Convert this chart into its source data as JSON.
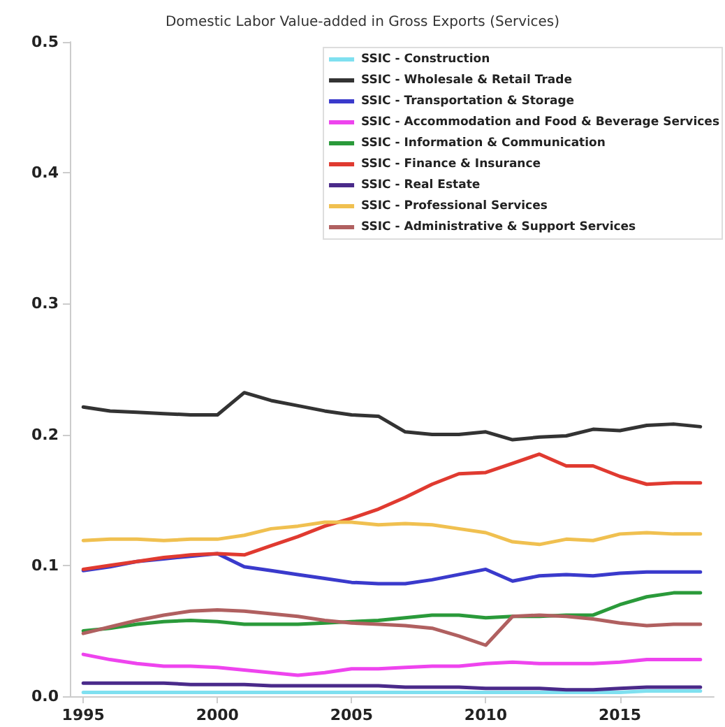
{
  "chart_data": {
    "type": "line",
    "title": "Domestic Labor Value-added in Gross Exports (Services)",
    "x": [
      1995,
      1996,
      1997,
      1998,
      1999,
      2000,
      2001,
      2002,
      2003,
      2004,
      2005,
      2006,
      2007,
      2008,
      2009,
      2010,
      2011,
      2012,
      2013,
      2014,
      2015,
      2016,
      2017,
      2018
    ],
    "xlim": [
      1994.5,
      2018.5
    ],
    "xticks": [
      1995,
      2000,
      2005,
      2010,
      2015
    ],
    "ylim": [
      0,
      0.5
    ],
    "yticks": [
      {
        "value": 0,
        "label": "0.0"
      },
      0.1,
      0.2,
      0.3,
      0.4,
      0.5
    ],
    "grid": false,
    "legend": "top right",
    "marker": "none",
    "line_style": "solid",
    "series": [
      {
        "name": "SSIC - Construction",
        "color": "#7fe0f0",
        "values": [
          0.003,
          0.003,
          0.003,
          0.003,
          0.003,
          0.003,
          0.003,
          0.003,
          0.003,
          0.003,
          0.003,
          0.003,
          0.003,
          0.003,
          0.003,
          0.003,
          0.003,
          0.003,
          0.003,
          0.003,
          0.003,
          0.004,
          0.004,
          0.004
        ]
      },
      {
        "name": "SSIC - Wholesale & Retail Trade",
        "color": "#333333",
        "values": [
          0.221,
          0.218,
          0.217,
          0.216,
          0.215,
          0.215,
          0.232,
          0.226,
          0.222,
          0.218,
          0.215,
          0.214,
          0.202,
          0.2,
          0.2,
          0.202,
          0.196,
          0.198,
          0.199,
          0.204,
          0.203,
          0.207,
          0.208,
          0.206
        ]
      },
      {
        "name": "SSIC - Transportation & Storage",
        "color": "#3a3acc",
        "values": [
          0.096,
          0.099,
          0.103,
          0.105,
          0.107,
          0.109,
          0.099,
          0.096,
          0.093,
          0.09,
          0.087,
          0.086,
          0.086,
          0.089,
          0.093,
          0.097,
          0.088,
          0.092,
          0.093,
          0.092,
          0.094,
          0.095,
          0.095,
          0.095
        ]
      },
      {
        "name": "SSIC - Accommodation and Food & Beverage Services",
        "color": "#ee44ee",
        "values": [
          0.032,
          0.028,
          0.025,
          0.023,
          0.023,
          0.022,
          0.02,
          0.018,
          0.016,
          0.018,
          0.021,
          0.021,
          0.022,
          0.023,
          0.023,
          0.025,
          0.026,
          0.025,
          0.025,
          0.025,
          0.026,
          0.028,
          0.028,
          0.028
        ]
      },
      {
        "name": "SSIC - Information & Communication",
        "color": "#2a9a3a",
        "values": [
          0.05,
          0.052,
          0.055,
          0.057,
          0.058,
          0.057,
          0.055,
          0.055,
          0.055,
          0.056,
          0.057,
          0.058,
          0.06,
          0.062,
          0.062,
          0.06,
          0.061,
          0.061,
          0.062,
          0.062,
          0.07,
          0.076,
          0.079,
          0.079
        ]
      },
      {
        "name": "SSIC - Finance & Insurance",
        "color": "#e03a30",
        "values": [
          0.097,
          0.1,
          0.103,
          0.106,
          0.108,
          0.109,
          0.108,
          0.115,
          0.122,
          0.13,
          0.136,
          0.143,
          0.152,
          0.162,
          0.17,
          0.171,
          0.178,
          0.185,
          0.176,
          0.176,
          0.168,
          0.162,
          0.163,
          0.163
        ]
      },
      {
        "name": "SSIC - Real Estate",
        "color": "#4a2a8a",
        "values": [
          0.01,
          0.01,
          0.01,
          0.01,
          0.009,
          0.009,
          0.009,
          0.008,
          0.008,
          0.008,
          0.008,
          0.008,
          0.007,
          0.007,
          0.007,
          0.006,
          0.006,
          0.006,
          0.005,
          0.005,
          0.006,
          0.007,
          0.007,
          0.007
        ]
      },
      {
        "name": "SSIC - Professional Services",
        "color": "#f0c050",
        "values": [
          0.119,
          0.12,
          0.12,
          0.119,
          0.12,
          0.12,
          0.123,
          0.128,
          0.13,
          0.133,
          0.133,
          0.131,
          0.132,
          0.131,
          0.128,
          0.125,
          0.118,
          0.116,
          0.12,
          0.119,
          0.124,
          0.125,
          0.124,
          0.124
        ]
      },
      {
        "name": "SSIC - Administrative & Support Services",
        "color": "#b06060",
        "values": [
          0.048,
          0.053,
          0.058,
          0.062,
          0.065,
          0.066,
          0.065,
          0.063,
          0.061,
          0.058,
          0.056,
          0.055,
          0.054,
          0.052,
          0.046,
          0.039,
          0.061,
          0.062,
          0.061,
          0.059,
          0.056,
          0.054,
          0.055,
          0.055
        ]
      }
    ]
  }
}
